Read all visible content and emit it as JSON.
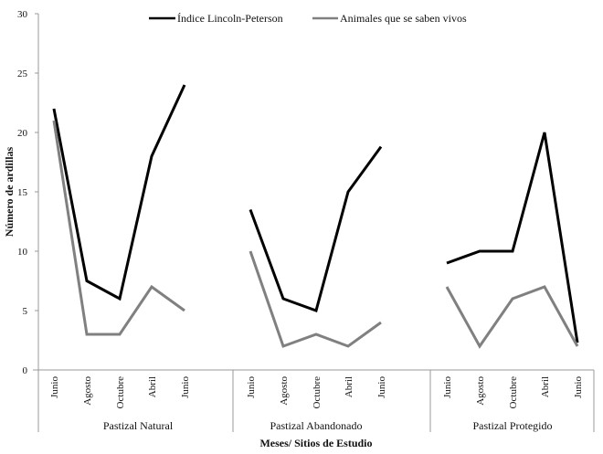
{
  "chart_data": {
    "type": "line",
    "title": "",
    "xlabel": "Meses/ Sitios de Estudio",
    "ylabel": "Número de ardillas",
    "ylim": [
      0,
      30
    ],
    "yticks": [
      0,
      5,
      10,
      15,
      20,
      25,
      30
    ],
    "grid": false,
    "legend_position": "top",
    "groups": [
      {
        "name": "Pastizal Natural",
        "categories": [
          "Junio",
          "Agosto",
          "Octubre",
          "Abril",
          "Junio"
        ]
      },
      {
        "name": "Pastizal Abandonado",
        "categories": [
          "Junio",
          "Agosto",
          "Octubre",
          "Abril",
          "Junio"
        ]
      },
      {
        "name": "Pastizal Protegido",
        "categories": [
          "Junio",
          "Agosto",
          "Octubre",
          "Abril",
          "Junio"
        ]
      }
    ],
    "categories": [
      "Junio",
      "Agosto",
      "Octubre",
      "Abril",
      "Junio",
      "Junio",
      "Agosto",
      "Octubre",
      "Abril",
      "Junio",
      "Junio",
      "Agosto",
      "Octubre",
      "Abril",
      "Junio"
    ],
    "series": [
      {
        "name": "Índice Lincoln-Peterson",
        "color": "#000000",
        "segments": [
          [
            22,
            7.5,
            6,
            18,
            24
          ],
          [
            13.5,
            6,
            5,
            15,
            18.8
          ],
          [
            9,
            10,
            10,
            20,
            2.3
          ]
        ]
      },
      {
        "name": "Animales que se saben vivos",
        "color": "#808080",
        "segments": [
          [
            21,
            3,
            3,
            7,
            5
          ],
          [
            10,
            2,
            3,
            2,
            4
          ],
          [
            7,
            2,
            6,
            7,
            2
          ]
        ]
      }
    ]
  },
  "legend": [
    {
      "label": "Índice Lincoln-Peterson",
      "color": "#000000"
    },
    {
      "label": "Animales que se saben vivos",
      "color": "#808080"
    }
  ],
  "axis": {
    "x_title": "Meses/ Sitios de Estudio",
    "y_title": "Número de ardillas",
    "y_ticks": [
      "0",
      "5",
      "10",
      "15",
      "20",
      "25",
      "30"
    ]
  }
}
